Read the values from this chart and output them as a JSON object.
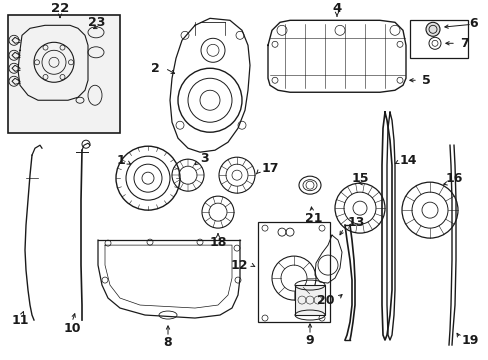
{
  "bg_color": "#ffffff",
  "lc": "#1a1a1a",
  "fs": 7.5,
  "figsize": [
    4.89,
    3.6
  ],
  "dpi": 100
}
